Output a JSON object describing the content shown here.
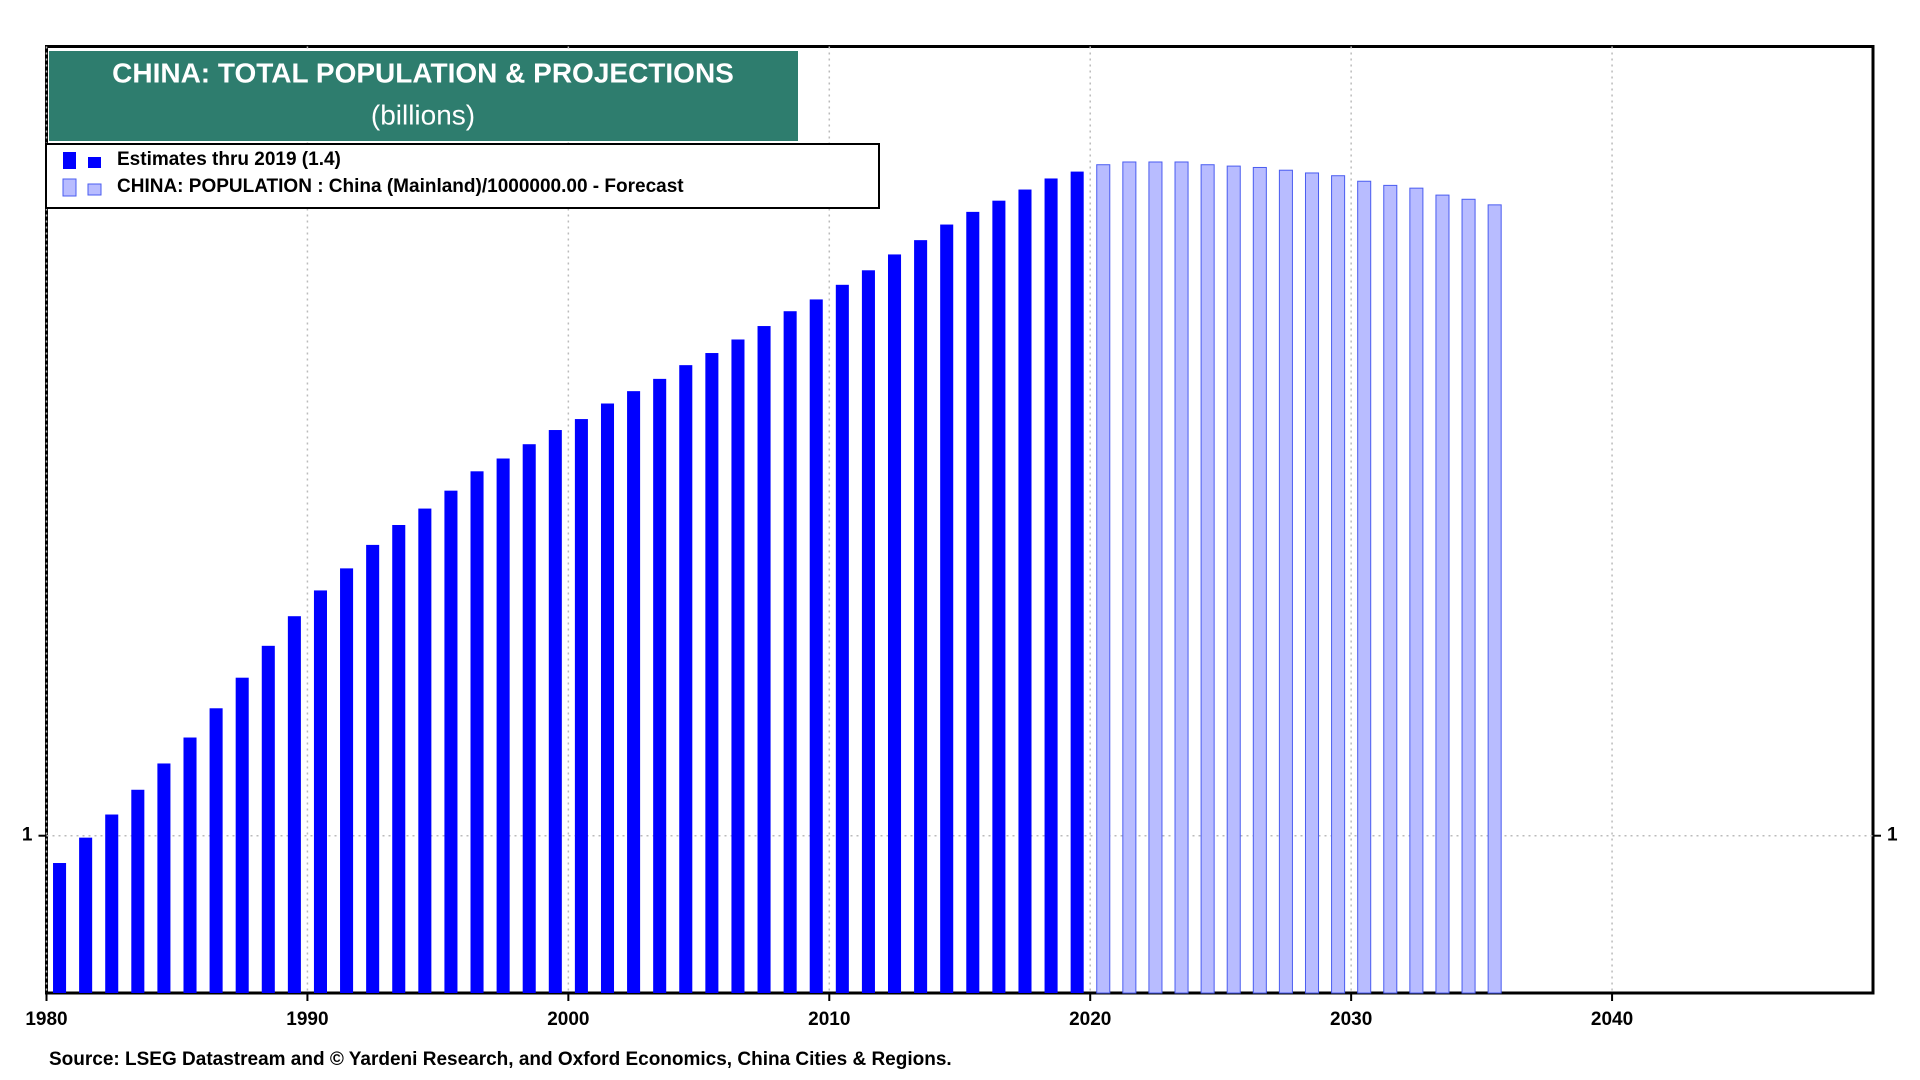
{
  "chart_data": {
    "type": "bar",
    "title": "CHINA: TOTAL POPULATION & PROJECTIONS",
    "subtitle": "(billions)",
    "source": "Source: LSEG Datastream and © Yardeni Research, and Oxford Economics, China Cities & Regions.",
    "log_scale": true,
    "grid": true,
    "xlim": [
      1980,
      2050
    ],
    "xticks": [
      1980,
      1990,
      2000,
      2010,
      2020,
      2030,
      2040
    ],
    "ylim": [
      0.922,
      1.503
    ],
    "yticks": [
      1
    ],
    "series": [
      {
        "name": "Estimates thru 2019 (1.4)",
        "color": "#0000ff",
        "x": [
          1980,
          1981,
          1982,
          1983,
          1984,
          1985,
          1986,
          1987,
          1988,
          1989,
          1990,
          1991,
          1992,
          1993,
          1994,
          1995,
          1996,
          1997,
          1998,
          1999,
          2000,
          2001,
          2002,
          2003,
          2004,
          2005,
          2006,
          2007,
          2008,
          2009,
          2010,
          2011,
          2012,
          2013,
          2014,
          2015,
          2016,
          2017,
          2018,
          2019
        ],
        "values": [
          0.986,
          0.999,
          1.011,
          1.024,
          1.038,
          1.052,
          1.068,
          1.085,
          1.103,
          1.12,
          1.135,
          1.148,
          1.162,
          1.174,
          1.184,
          1.195,
          1.207,
          1.215,
          1.224,
          1.233,
          1.24,
          1.25,
          1.258,
          1.266,
          1.275,
          1.283,
          1.292,
          1.301,
          1.311,
          1.319,
          1.329,
          1.339,
          1.35,
          1.36,
          1.371,
          1.38,
          1.388,
          1.396,
          1.404,
          1.409
        ]
      },
      {
        "name": "CHINA: POPULATION : China (Mainland)/1000000.00 - Forecast",
        "color": "#b8bcff",
        "x": [
          2020,
          2021,
          2022,
          2023,
          2024,
          2025,
          2026,
          2027,
          2028,
          2029,
          2030,
          2031,
          2032,
          2033,
          2034,
          2035
        ],
        "values": [
          1.414,
          1.416,
          1.416,
          1.416,
          1.414,
          1.413,
          1.412,
          1.41,
          1.408,
          1.406,
          1.402,
          1.399,
          1.397,
          1.392,
          1.389,
          1.385
        ]
      }
    ]
  }
}
